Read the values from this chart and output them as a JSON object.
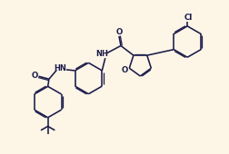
{
  "bg_color": "#fdf5e6",
  "line_color": "#1a1a4a",
  "lw": 1.15,
  "figsize": [
    2.53,
    1.7
  ],
  "dpi": 100,
  "xlim": [
    0,
    10
  ],
  "ylim": [
    0,
    6.72
  ]
}
